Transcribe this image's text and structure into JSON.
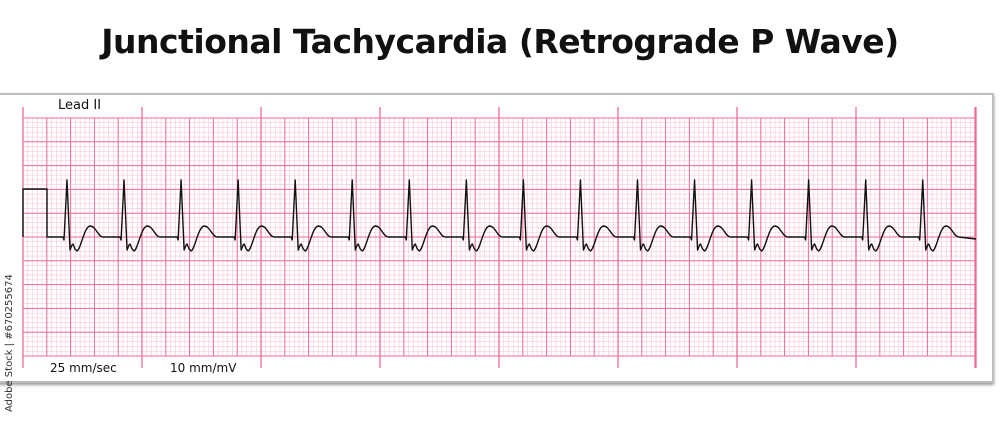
{
  "title": "Junctional Tachycardia (Retrograde P Wave)",
  "lead_label": "Lead II",
  "paper_speed": "25 mm/sec",
  "gain": "10 mm/mV",
  "watermark": "Adobe Stock | #670255674",
  "colors": {
    "grid_minor": "#f9c6d8",
    "grid_major": "#f06a9c",
    "trace": "#111111",
    "paper": "#ffffff"
  },
  "beat_count": 16
}
